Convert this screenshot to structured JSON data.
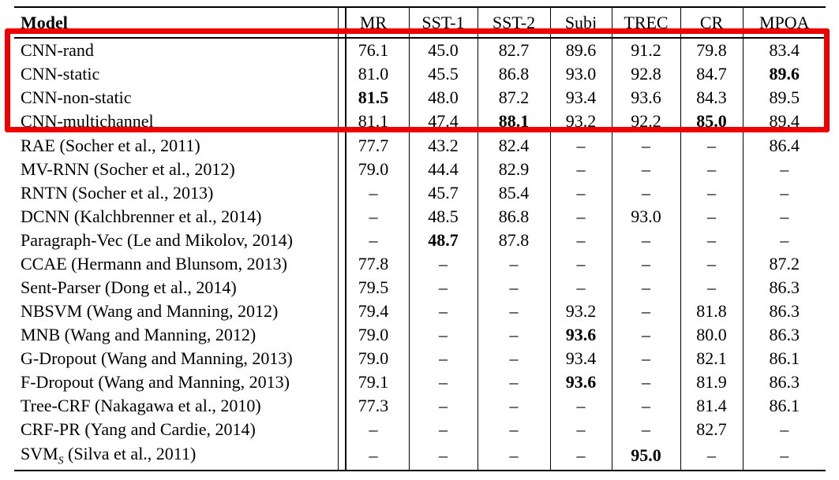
{
  "table": {
    "header": {
      "model": "Model",
      "cols": [
        "MR",
        "SST-1",
        "SST-2",
        "Subj",
        "TREC",
        "CR",
        "MPQA"
      ]
    },
    "rows": [
      {
        "model": "CNN-rand",
        "values": [
          "76.1",
          "45.0",
          "82.7",
          "89.6",
          "91.2",
          "79.8",
          "83.4"
        ],
        "bold": []
      },
      {
        "model": "CNN-static",
        "values": [
          "81.0",
          "45.5",
          "86.8",
          "93.0",
          "92.8",
          "84.7",
          "89.6"
        ],
        "bold": [
          6
        ]
      },
      {
        "model": "CNN-non-static",
        "values": [
          "81.5",
          "48.0",
          "87.2",
          "93.4",
          "93.6",
          "84.3",
          "89.5"
        ],
        "bold": [
          0
        ]
      },
      {
        "model": "CNN-multichannel",
        "values": [
          "81.1",
          "47.4",
          "88.1",
          "93.2",
          "92.2",
          "85.0",
          "89.4"
        ],
        "bold": [
          2,
          5
        ]
      },
      {
        "model": "RAE (Socher et al., 2011)",
        "values": [
          "77.7",
          "43.2",
          "82.4",
          "–",
          "–",
          "–",
          "86.4"
        ],
        "bold": []
      },
      {
        "model": "MV-RNN (Socher et al., 2012)",
        "values": [
          "79.0",
          "44.4",
          "82.9",
          "–",
          "–",
          "–",
          "–"
        ],
        "bold": []
      },
      {
        "model": "RNTN (Socher et al., 2013)",
        "values": [
          "–",
          "45.7",
          "85.4",
          "–",
          "–",
          "–",
          "–"
        ],
        "bold": []
      },
      {
        "model": "DCNN (Kalchbrenner et al., 2014)",
        "values": [
          "–",
          "48.5",
          "86.8",
          "–",
          "93.0",
          "–",
          "–"
        ],
        "bold": []
      },
      {
        "model": "Paragraph-Vec (Le and Mikolov, 2014)",
        "values": [
          "–",
          "48.7",
          "87.8",
          "–",
          "–",
          "–",
          "–"
        ],
        "bold": [
          1
        ]
      },
      {
        "model": "CCAE (Hermann and Blunsom, 2013)",
        "values": [
          "77.8",
          "–",
          "–",
          "–",
          "–",
          "–",
          "87.2"
        ],
        "bold": []
      },
      {
        "model": "Sent-Parser (Dong et al., 2014)",
        "values": [
          "79.5",
          "–",
          "–",
          "–",
          "–",
          "–",
          "86.3"
        ],
        "bold": []
      },
      {
        "model": "NBSVM (Wang and Manning, 2012)",
        "values": [
          "79.4",
          "–",
          "–",
          "93.2",
          "–",
          "81.8",
          "86.3"
        ],
        "bold": []
      },
      {
        "model": "MNB (Wang and Manning, 2012)",
        "values": [
          "79.0",
          "–",
          "–",
          "93.6",
          "–",
          "80.0",
          "86.3"
        ],
        "bold": [
          3
        ]
      },
      {
        "model": "G-Dropout (Wang and Manning, 2013)",
        "values": [
          "79.0",
          "–",
          "–",
          "93.4",
          "–",
          "82.1",
          "86.1"
        ],
        "bold": []
      },
      {
        "model": "F-Dropout (Wang and Manning, 2013)",
        "values": [
          "79.1",
          "–",
          "–",
          "93.6",
          "–",
          "81.9",
          "86.3"
        ],
        "bold": [
          3
        ]
      },
      {
        "model": "Tree-CRF (Nakagawa et al., 2010)",
        "values": [
          "77.3",
          "–",
          "–",
          "–",
          "–",
          "81.4",
          "86.1"
        ],
        "bold": []
      },
      {
        "model": "CRF-PR (Yang and Cardie, 2014)",
        "values": [
          "–",
          "–",
          "–",
          "–",
          "–",
          "82.7",
          "–"
        ],
        "bold": []
      },
      {
        "model": "SVM",
        "model_sub": "S",
        "model_rest": " (Silva et al., 2011)",
        "values": [
          "–",
          "–",
          "–",
          "–",
          "95.0",
          "–",
          "–"
        ],
        "bold": [
          4
        ]
      }
    ]
  },
  "annotation": {
    "highlight_box_color": "#ee0000"
  }
}
